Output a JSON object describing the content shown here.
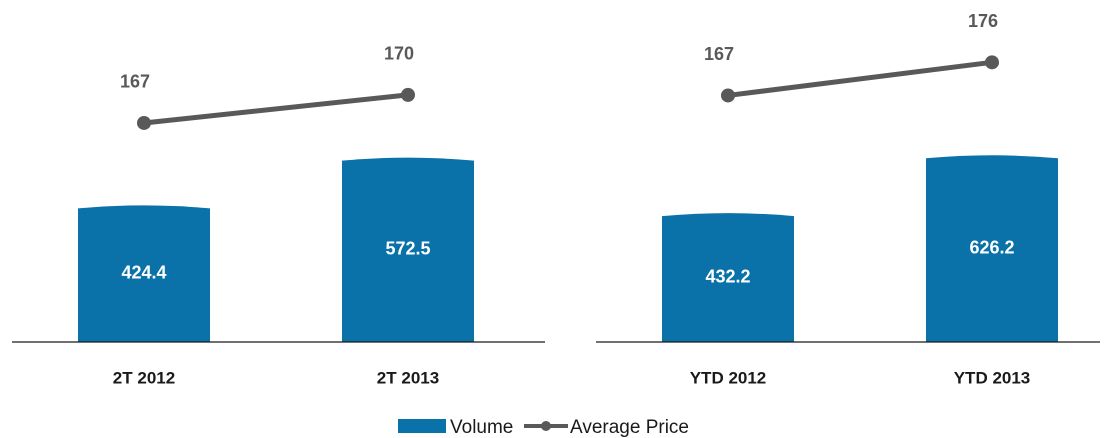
{
  "chart_data": [
    {
      "type": "bar+line",
      "categories": [
        "2T 2012",
        "2T 2013"
      ],
      "ylim": [
        0,
        1000
      ],
      "y2lim": [
        143.6,
        178
      ],
      "series": [
        {
          "name": "Volume",
          "type": "bar",
          "color": "#0a72a8",
          "values": [
            424.4,
            572.5
          ]
        },
        {
          "name": "Average Price",
          "type": "line",
          "axis": "y2",
          "color": "#595959",
          "values": [
            167,
            170
          ]
        }
      ]
    },
    {
      "type": "bar+line",
      "categories": [
        "YTD 2012",
        "YTD 2013"
      ],
      "ylim": [
        0,
        1080
      ],
      "y2lim": [
        100,
        187.5
      ],
      "series": [
        {
          "type": "bar",
          "color": "#0a72a8",
          "values": [
            432.2,
            626.2
          ]
        },
        {
          "type": "line",
          "axis": "y2",
          "color": "#595959",
          "values": [
            167,
            176
          ]
        }
      ]
    }
  ]
}
